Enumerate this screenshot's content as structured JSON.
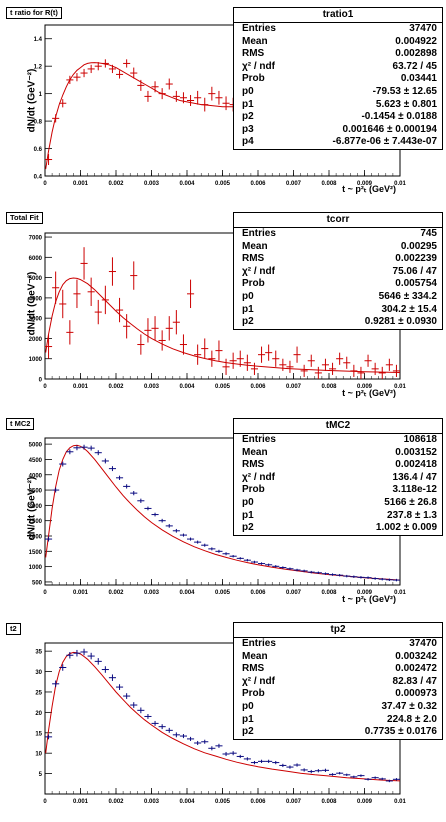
{
  "panels": [
    {
      "tag": "t ratio for R(t)",
      "stats": {
        "title": "tratio1",
        "rows": [
          {
            "k": "Entries",
            "v": "37470"
          },
          {
            "k": "Mean",
            "v": "0.004922"
          },
          {
            "k": "RMS",
            "v": "0.002898"
          },
          {
            "k": "χ² / ndf",
            "v": "63.72 / 45"
          },
          {
            "k": "Prob",
            "v": "0.03441"
          },
          {
            "k": "p0",
            "v": "-79.53 ± 12.65"
          },
          {
            "k": "p1",
            "v": "5.623 ± 0.801"
          },
          {
            "k": "p2",
            "v": "-0.1454 ± 0.0188"
          },
          {
            "k": "p3",
            "v": "0.001646 ± 0.000194"
          },
          {
            "k": "p4",
            "v": "-6.877e-06 ± 7.443e-07"
          }
        ]
      },
      "ylabel": "dN/dt (GeV⁻²)",
      "xlabel": "t ~ p²ₜ (GeV²)"
    },
    {
      "tag": "Total Fit",
      "stats": {
        "title": "tcorr",
        "rows": [
          {
            "k": "Entries",
            "v": "745"
          },
          {
            "k": "Mean",
            "v": "0.00295"
          },
          {
            "k": "RMS",
            "v": "0.002239"
          },
          {
            "k": "χ² / ndf",
            "v": "75.06 / 47"
          },
          {
            "k": "Prob",
            "v": "0.005754"
          },
          {
            "k": "p0",
            "v": "5646 ± 334.2"
          },
          {
            "k": "p1",
            "v": "304.2 ± 15.4"
          },
          {
            "k": "p2",
            "v": "0.9281 ± 0.0930"
          }
        ]
      },
      "ylabel": "dN/dt (GeV⁻²)",
      "xlabel": "t ~ p²ₜ (GeV²)"
    },
    {
      "tag": "t MC2",
      "stats": {
        "title": "tMC2",
        "rows": [
          {
            "k": "Entries",
            "v": "108618"
          },
          {
            "k": "Mean",
            "v": "0.003152"
          },
          {
            "k": "RMS",
            "v": "0.002418"
          },
          {
            "k": "χ² / ndf",
            "v": "136.4 / 47"
          },
          {
            "k": "Prob",
            "v": "3.118e-12"
          },
          {
            "k": "p0",
            "v": "5166 ± 26.8"
          },
          {
            "k": "p1",
            "v": "237.8 ± 1.3"
          },
          {
            "k": "p2",
            "v": "1.002 ± 0.009"
          }
        ]
      },
      "ylabel": "dN/dt (GeV⁻²)",
      "xlabel": "t ~ p²ₜ (GeV²)"
    },
    {
      "tag": "t2",
      "stats": {
        "title": "tp2",
        "rows": [
          {
            "k": "Entries",
            "v": "37470"
          },
          {
            "k": "Mean",
            "v": "0.003242"
          },
          {
            "k": "RMS",
            "v": "0.002472"
          },
          {
            "k": "χ² / ndf",
            "v": "82.83 / 47"
          },
          {
            "k": "Prob",
            "v": "0.000973"
          },
          {
            "k": "p0",
            "v": "37.47 ± 0.32"
          },
          {
            "k": "p1",
            "v": "224.8 ± 2.0"
          },
          {
            "k": "p2",
            "v": "0.7735 ± 0.0176"
          }
        ]
      },
      "ylabel": "",
      "xlabel": ""
    }
  ],
  "chart_data": [
    {
      "type": "scatter",
      "title": "t ratio for R(t)",
      "xlabel": "t ~ p²ₜ (GeV²)",
      "ylabel": "dN/dt (GeV⁻²)",
      "xlim": [
        0,
        0.01
      ],
      "ylim": [
        0.4,
        1.5
      ],
      "xticks": [
        "0",
        "0.001",
        "0.002",
        "0.003",
        "0.004",
        "0.005",
        "0.006",
        "0.007",
        "0.008",
        "0.009",
        "0.01"
      ],
      "yticks": [
        "0.4",
        "0.6",
        "0.8",
        "1",
        "1.2",
        "1.4"
      ],
      "marker_color": "#cc0000",
      "fit_color": "#cc0000",
      "x": [
        0.0001,
        0.0003,
        0.0005,
        0.0007,
        0.0009,
        0.0011,
        0.0013,
        0.0015,
        0.0017,
        0.0019,
        0.0021,
        0.0023,
        0.0025,
        0.0027,
        0.0029,
        0.0031,
        0.0033,
        0.0035,
        0.0037,
        0.0039,
        0.0041,
        0.0043,
        0.0045,
        0.0047,
        0.0049,
        0.0051,
        0.0053,
        0.0055,
        0.0057,
        0.0059,
        0.0061,
        0.0063,
        0.0065,
        0.0067,
        0.0069
      ],
      "y": [
        0.52,
        0.82,
        0.93,
        1.1,
        1.12,
        1.15,
        1.18,
        1.2,
        1.22,
        1.18,
        1.14,
        1.22,
        1.15,
        1.06,
        0.98,
        1.05,
        1.0,
        1.07,
        0.98,
        0.97,
        0.95,
        0.97,
        0.92,
        1.0,
        0.97,
        0.93,
        0.92,
        0.94,
        0.99,
        0.93,
        1.02,
        1.0,
        0.93,
        0.95,
        0.99
      ],
      "yerr": [
        0.04,
        0.03,
        0.03,
        0.03,
        0.03,
        0.03,
        0.03,
        0.03,
        0.03,
        0.03,
        0.03,
        0.03,
        0.04,
        0.04,
        0.04,
        0.04,
        0.04,
        0.04,
        0.04,
        0.04,
        0.04,
        0.05,
        0.05,
        0.05,
        0.05,
        0.05,
        0.05,
        0.05,
        0.06,
        0.06,
        0.06,
        0.06,
        0.06,
        0.06,
        0.07
      ],
      "fit_x": [
        2e-05,
        0.0001,
        0.0002,
        0.0003,
        0.0004,
        0.0005,
        0.0006,
        0.0007,
        0.0008,
        0.0009,
        0.001,
        0.0011,
        0.0012,
        0.0013,
        0.0014,
        0.0015,
        0.0016,
        0.0017,
        0.0018,
        0.0019,
        0.002,
        0.0022,
        0.0024,
        0.0026,
        0.0028,
        0.003,
        0.0032,
        0.0034,
        0.0036,
        0.0038,
        0.004,
        0.0042,
        0.0044,
        0.0046,
        0.0048,
        0.005,
        0.0052,
        0.0054,
        0.0056,
        0.0058,
        0.006,
        0.0062,
        0.0064,
        0.0066,
        0.0068,
        0.007
      ],
      "fit_y": [
        0.45,
        0.58,
        0.72,
        0.83,
        0.92,
        0.99,
        1.05,
        1.1,
        1.14,
        1.17,
        1.19,
        1.21,
        1.22,
        1.225,
        1.226,
        1.224,
        1.22,
        1.215,
        1.21,
        1.2,
        1.19,
        1.16,
        1.13,
        1.1,
        1.07,
        1.04,
        1.01,
        0.99,
        0.97,
        0.95,
        0.94,
        0.93,
        0.92,
        0.915,
        0.91,
        0.905,
        0.905,
        0.905,
        0.91,
        0.915,
        0.92,
        0.93,
        0.94,
        0.95,
        0.96,
        0.975
      ]
    },
    {
      "type": "scatter",
      "title": "Total Fit",
      "xlabel": "t ~ p²ₜ (GeV²)",
      "ylabel": "dN/dt (GeV⁻²)",
      "xlim": [
        0,
        0.01
      ],
      "ylim": [
        0,
        7200
      ],
      "xticks": [
        "0",
        "0.001",
        "0.002",
        "0.003",
        "0.004",
        "0.005",
        "0.006",
        "0.007",
        "0.008",
        "0.009",
        "0.01"
      ],
      "yticks": [
        "0",
        "1000",
        "2000",
        "3000",
        "4000",
        "5000",
        "6000",
        "7000"
      ],
      "marker_color": "#cc0000",
      "fit_color": "#cc0000",
      "x": [
        0.0001,
        0.0003,
        0.0005,
        0.0007,
        0.0009,
        0.0011,
        0.0013,
        0.0015,
        0.0017,
        0.0019,
        0.0021,
        0.0023,
        0.0025,
        0.0027,
        0.0029,
        0.0031,
        0.0033,
        0.0035,
        0.0037,
        0.0039,
        0.0041,
        0.0043,
        0.0045,
        0.0047,
        0.0049,
        0.0051,
        0.0053,
        0.0055,
        0.0057,
        0.0059,
        0.0061,
        0.0063,
        0.0065,
        0.0067,
        0.0069,
        0.0071,
        0.0073,
        0.0075,
        0.0077,
        0.0079,
        0.0081,
        0.0083,
        0.0085,
        0.0087,
        0.0089,
        0.0091,
        0.0093,
        0.0095,
        0.0097,
        0.0099
      ],
      "y": [
        1600,
        4500,
        3700,
        2300,
        4200,
        5700,
        4300,
        3300,
        3900,
        5300,
        3400,
        2600,
        5100,
        1700,
        2400,
        2500,
        1900,
        2500,
        2800,
        1700,
        4200,
        1200,
        1500,
        1000,
        1400,
        600,
        900,
        1000,
        800,
        500,
        1200,
        1300,
        1000,
        700,
        600,
        1200,
        400,
        900,
        300,
        700,
        500,
        1000,
        800,
        400,
        300,
        900,
        500,
        300,
        700,
        400
      ],
      "yerr": [
        600,
        800,
        700,
        600,
        700,
        800,
        700,
        600,
        700,
        700,
        600,
        600,
        700,
        500,
        600,
        600,
        500,
        600,
        600,
        500,
        700,
        500,
        500,
        400,
        500,
        400,
        400,
        400,
        400,
        300,
        400,
        400,
        400,
        300,
        300,
        400,
        300,
        300,
        300,
        300,
        300,
        300,
        300,
        300,
        300,
        300,
        300,
        300,
        300,
        300
      ],
      "fit_x": [
        2e-05,
        0.0001,
        0.0002,
        0.0003,
        0.0004,
        0.0005,
        0.0006,
        0.0007,
        0.0008,
        0.0009,
        0.001,
        0.0012,
        0.0014,
        0.0016,
        0.0018,
        0.002,
        0.0022,
        0.0024,
        0.0026,
        0.0028,
        0.003,
        0.0033,
        0.0036,
        0.0039,
        0.0042,
        0.0045,
        0.0048,
        0.0051,
        0.0054,
        0.0057,
        0.006,
        0.0064,
        0.0068,
        0.0072,
        0.0076,
        0.008,
        0.0085,
        0.009,
        0.0095,
        0.01
      ],
      "fit_y": [
        1300,
        2200,
        3100,
        3800,
        4300,
        4650,
        4850,
        4950,
        4980,
        4960,
        4900,
        4700,
        4400,
        4050,
        3700,
        3350,
        3030,
        2740,
        2470,
        2220,
        2000,
        1720,
        1490,
        1300,
        1140,
        1010,
        900,
        810,
        740,
        680,
        630,
        570,
        520,
        480,
        450,
        420,
        390,
        360,
        340,
        320
      ]
    },
    {
      "type": "scatter",
      "title": "t MC2",
      "xlabel": "t ~ p²ₜ (GeV²)",
      "ylabel": "dN/dt (GeV⁻²)",
      "xlim": [
        0,
        0.01
      ],
      "ylim": [
        400,
        5200
      ],
      "xticks": [
        "0",
        "0.001",
        "0.002",
        "0.003",
        "0.004",
        "0.005",
        "0.006",
        "0.007",
        "0.008",
        "0.009",
        "0.01"
      ],
      "yticks": [
        "500",
        "1000",
        "1500",
        "2000",
        "2500",
        "3000",
        "3500",
        "4000",
        "4500",
        "5000"
      ],
      "marker_color": "#0a0a80",
      "fit_color": "#cc0000",
      "x": [
        0.0001,
        0.0003,
        0.0005,
        0.0007,
        0.0009,
        0.0011,
        0.0013,
        0.0015,
        0.0017,
        0.0019,
        0.0021,
        0.0023,
        0.0025,
        0.0027,
        0.0029,
        0.0031,
        0.0033,
        0.0035,
        0.0037,
        0.0039,
        0.0041,
        0.0043,
        0.0045,
        0.0047,
        0.0049,
        0.0051,
        0.0053,
        0.0055,
        0.0057,
        0.0059,
        0.0061,
        0.0063,
        0.0065,
        0.0067,
        0.0069,
        0.0071,
        0.0073,
        0.0075,
        0.0077,
        0.0079,
        0.0081,
        0.0083,
        0.0085,
        0.0087,
        0.0089,
        0.0091,
        0.0093,
        0.0095,
        0.0097,
        0.0099
      ],
      "y": [
        1900,
        3500,
        4350,
        4750,
        4880,
        4900,
        4870,
        4720,
        4450,
        4200,
        3900,
        3620,
        3400,
        3150,
        2900,
        2700,
        2500,
        2330,
        2170,
        2030,
        1900,
        1800,
        1700,
        1580,
        1500,
        1420,
        1340,
        1270,
        1210,
        1150,
        1100,
        1060,
        1010,
        970,
        930,
        890,
        860,
        820,
        800,
        770,
        740,
        720,
        690,
        670,
        650,
        640,
        610,
        590,
        570,
        560
      ],
      "yerr": [
        80,
        80,
        80,
        80,
        80,
        80,
        80,
        80,
        80,
        80,
        70,
        70,
        70,
        70,
        60,
        60,
        60,
        60,
        60,
        50,
        50,
        50,
        50,
        50,
        50,
        50,
        40,
        40,
        40,
        40,
        40,
        40,
        40,
        40,
        40,
        40,
        40,
        40,
        40,
        40,
        40,
        40,
        40,
        40,
        40,
        40,
        40,
        40,
        40,
        40
      ],
      "fit_x": [
        2e-05,
        0.0001,
        0.0002,
        0.0003,
        0.0004,
        0.0005,
        0.0006,
        0.0007,
        0.0008,
        0.0009,
        0.001,
        0.0011,
        0.0012,
        0.0014,
        0.0016,
        0.0018,
        0.002,
        0.0022,
        0.0024,
        0.0026,
        0.0028,
        0.003,
        0.0033,
        0.0036,
        0.0039,
        0.0042,
        0.0045,
        0.0048,
        0.0051,
        0.0054,
        0.0057,
        0.006,
        0.0064,
        0.0068,
        0.0072,
        0.0076,
        0.008,
        0.0085,
        0.009,
        0.0095,
        0.01
      ],
      "fit_y": [
        1300,
        2000,
        2900,
        3600,
        4150,
        4500,
        4750,
        4880,
        4950,
        4960,
        4930,
        4860,
        4760,
        4500,
        4200,
        3900,
        3600,
        3320,
        3070,
        2840,
        2630,
        2440,
        2200,
        1990,
        1810,
        1650,
        1520,
        1400,
        1300,
        1210,
        1130,
        1060,
        980,
        910,
        850,
        790,
        740,
        690,
        640,
        600,
        560
      ]
    },
    {
      "type": "scatter",
      "title": "t2",
      "xlim": [
        0,
        0.01
      ],
      "ylim": [
        0,
        37
      ],
      "xticks": [
        "0",
        "0.001",
        "0.002",
        "0.003",
        "0.004",
        "0.005",
        "0.006",
        "0.007",
        "0.008",
        "0.009",
        "0.01"
      ],
      "yticks": [
        "5",
        "10",
        "15",
        "20",
        "25",
        "30",
        "35"
      ],
      "marker_color": "#0a0a80",
      "fit_color": "#cc0000",
      "x": [
        0.0001,
        0.0003,
        0.0005,
        0.0007,
        0.0009,
        0.0011,
        0.0013,
        0.0015,
        0.0017,
        0.0019,
        0.0021,
        0.0023,
        0.0025,
        0.0027,
        0.0029,
        0.0031,
        0.0033,
        0.0035,
        0.0037,
        0.0039,
        0.0041,
        0.0043,
        0.0045,
        0.0047,
        0.0049,
        0.0051,
        0.0053,
        0.0055,
        0.0057,
        0.0059,
        0.0061,
        0.0063,
        0.0065,
        0.0067,
        0.0069,
        0.0071,
        0.0073,
        0.0075,
        0.0077,
        0.0079,
        0.0081,
        0.0083,
        0.0085,
        0.0087,
        0.0089,
        0.0091,
        0.0093,
        0.0095,
        0.0097,
        0.0099
      ],
      "y": [
        14,
        27,
        31,
        34,
        34.5,
        34.8,
        33.8,
        32.5,
        30.5,
        28.5,
        26.2,
        24,
        21.8,
        20.5,
        19,
        17.3,
        16.5,
        15.6,
        14.5,
        14.2,
        13.5,
        12.5,
        12.8,
        11.2,
        11.8,
        9.8,
        10,
        9.2,
        8.6,
        7.7,
        8,
        8,
        7.7,
        7,
        6.6,
        7.1,
        5.9,
        5.5,
        5.7,
        5.8,
        4.8,
        5.1,
        4.7,
        4.2,
        4.5,
        3.6,
        4,
        3.7,
        3.2,
        3.6
      ],
      "yerr": [
        0.6,
        0.8,
        0.8,
        0.8,
        0.8,
        0.8,
        0.8,
        0.8,
        0.8,
        0.8,
        0.7,
        0.7,
        0.7,
        0.7,
        0.6,
        0.6,
        0.6,
        0.6,
        0.6,
        0.5,
        0.5,
        0.5,
        0.5,
        0.5,
        0.5,
        0.5,
        0.5,
        0.4,
        0.4,
        0.4,
        0.4,
        0.4,
        0.4,
        0.4,
        0.4,
        0.4,
        0.4,
        0.4,
        0.4,
        0.4,
        0.3,
        0.3,
        0.3,
        0.3,
        0.3,
        0.3,
        0.3,
        0.3,
        0.3,
        0.3
      ],
      "fit_x": [
        2e-05,
        0.0001,
        0.0002,
        0.0003,
        0.0004,
        0.0005,
        0.0006,
        0.0007,
        0.0008,
        0.0009,
        0.001,
        0.0011,
        0.0012,
        0.0014,
        0.0016,
        0.0018,
        0.002,
        0.0022,
        0.0024,
        0.0026,
        0.0028,
        0.003,
        0.0033,
        0.0036,
        0.0039,
        0.0042,
        0.0045,
        0.0048,
        0.0051,
        0.0054,
        0.0057,
        0.006,
        0.0064,
        0.0068,
        0.0072,
        0.0076,
        0.008,
        0.0085,
        0.009,
        0.0095,
        0.01
      ],
      "fit_y": [
        10,
        15.5,
        21.5,
        26.5,
        30,
        32.3,
        33.7,
        34.4,
        34.7,
        34.6,
        34.3,
        33.7,
        33,
        31.2,
        29.2,
        27.1,
        25,
        23.1,
        21.3,
        19.7,
        18.2,
        16.9,
        15.1,
        13.6,
        12.3,
        11.1,
        10.1,
        9.3,
        8.5,
        7.8,
        7.2,
        6.7,
        6.1,
        5.6,
        5.1,
        4.7,
        4.4,
        4,
        3.7,
        3.4,
        3.2
      ]
    }
  ]
}
